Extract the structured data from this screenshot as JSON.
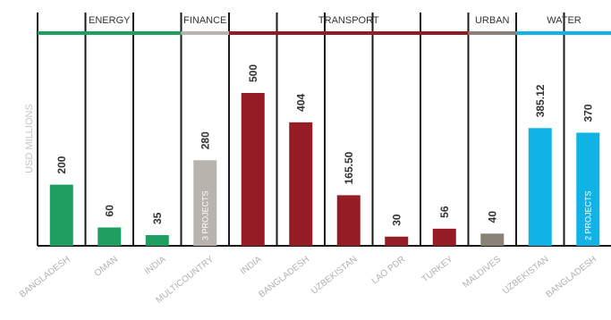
{
  "chart_data": {
    "type": "bar",
    "ylabel": "USD MILLIONS",
    "ylim": [
      0,
      590
    ],
    "groups": [
      {
        "name": "ENERGY",
        "color": "#1f9e61",
        "categories": [
          "BANGLADESH",
          "OMAN",
          "INDIA"
        ]
      },
      {
        "name": "FINANCE",
        "color": "#b8b4ad",
        "categories": [
          "MULTICOUNTRY"
        ]
      },
      {
        "name": "TRANSPORT",
        "color": "#951c24",
        "categories": [
          "INDIA",
          "BANGLADESH",
          "UZBEKISTAN",
          "LAO PDR",
          "TURKEY"
        ]
      },
      {
        "name": "URBAN",
        "color": "#8a8279",
        "categories": [
          "MALDIVES"
        ]
      },
      {
        "name": "WATER",
        "color": "#11b3e6",
        "categories": [
          "UZBEKISTAN",
          "BANGLADESH"
        ]
      }
    ],
    "bars": [
      {
        "category": "BANGLADESH",
        "group": "ENERGY",
        "value": 200,
        "value_label": "200",
        "note": ""
      },
      {
        "category": "OMAN",
        "group": "ENERGY",
        "value": 60,
        "value_label": "60",
        "note": ""
      },
      {
        "category": "INDIA",
        "group": "ENERGY",
        "value": 35,
        "value_label": "35",
        "note": ""
      },
      {
        "category": "MULTICOUNTRY",
        "group": "FINANCE",
        "value": 280,
        "value_label": "280",
        "note": "3 PROJECTS"
      },
      {
        "category": "INDIA",
        "group": "TRANSPORT",
        "value": 500,
        "value_label": "500",
        "note": ""
      },
      {
        "category": "BANGLADESH",
        "group": "TRANSPORT",
        "value": 404,
        "value_label": "404",
        "note": ""
      },
      {
        "category": "UZBEKISTAN",
        "group": "TRANSPORT",
        "value": 165.5,
        "value_label": "165.50",
        "note": ""
      },
      {
        "category": "LAO PDR",
        "group": "TRANSPORT",
        "value": 30,
        "value_label": "30",
        "note": ""
      },
      {
        "category": "TURKEY",
        "group": "TRANSPORT",
        "value": 56,
        "value_label": "56",
        "note": ""
      },
      {
        "category": "MALDIVES",
        "group": "URBAN",
        "value": 40,
        "value_label": "40",
        "note": ""
      },
      {
        "category": "UZBEKISTAN",
        "group": "WATER",
        "value": 385.12,
        "value_label": "385.12",
        "note": ""
      },
      {
        "category": "BANGLADESH",
        "group": "WATER",
        "value": 370,
        "value_label": "370",
        "note": "2 PROJECTS"
      }
    ]
  }
}
